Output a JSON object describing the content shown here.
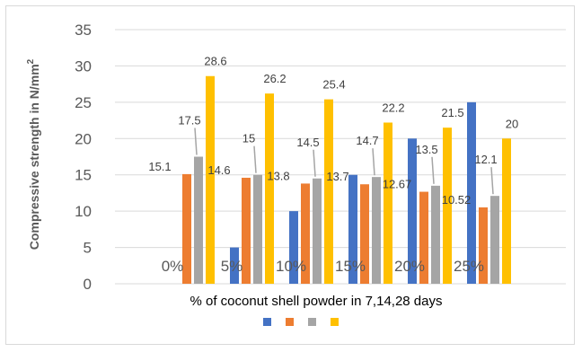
{
  "chart_data": {
    "type": "bar",
    "ylabel_main": "Compressive strength  in N/mm",
    "ylabel_sup": "2",
    "xlabel": "% of coconut shell powder in 7,14,28 days",
    "ylim": [
      0,
      35
    ],
    "yticks": [
      "0",
      "5",
      "10",
      "15",
      "20",
      "25",
      "30",
      "35"
    ],
    "categories": [
      "0%",
      "5%",
      "10%",
      "15%",
      "20%",
      "25%"
    ],
    "series": [
      {
        "values": [
          0,
          5,
          10,
          15,
          20,
          25
        ],
        "color": "#4472c4",
        "labels": [
          "",
          "",
          "",
          "",
          "",
          ""
        ]
      },
      {
        "values": [
          15.1,
          14.6,
          13.8,
          13.7,
          12.67,
          10.52
        ],
        "color": "#ed7d31",
        "labels": [
          "15.1",
          "14.6",
          "13.8",
          "13.7",
          "12.67",
          "10.52"
        ]
      },
      {
        "values": [
          17.5,
          15,
          14.5,
          14.7,
          13.5,
          12.1
        ],
        "color": "#a5a5a5",
        "labels": [
          "17.5",
          "15",
          "14.5",
          "14.7",
          "13.5",
          "12.1"
        ]
      },
      {
        "values": [
          28.6,
          26.2,
          25.4,
          22.2,
          21.5,
          20
        ],
        "color": "#ffc000",
        "labels": [
          "28.6",
          "26.2",
          "25.4",
          "22.2",
          "21.5",
          "20"
        ]
      }
    ],
    "legend_position": "bottom",
    "grid": true
  }
}
